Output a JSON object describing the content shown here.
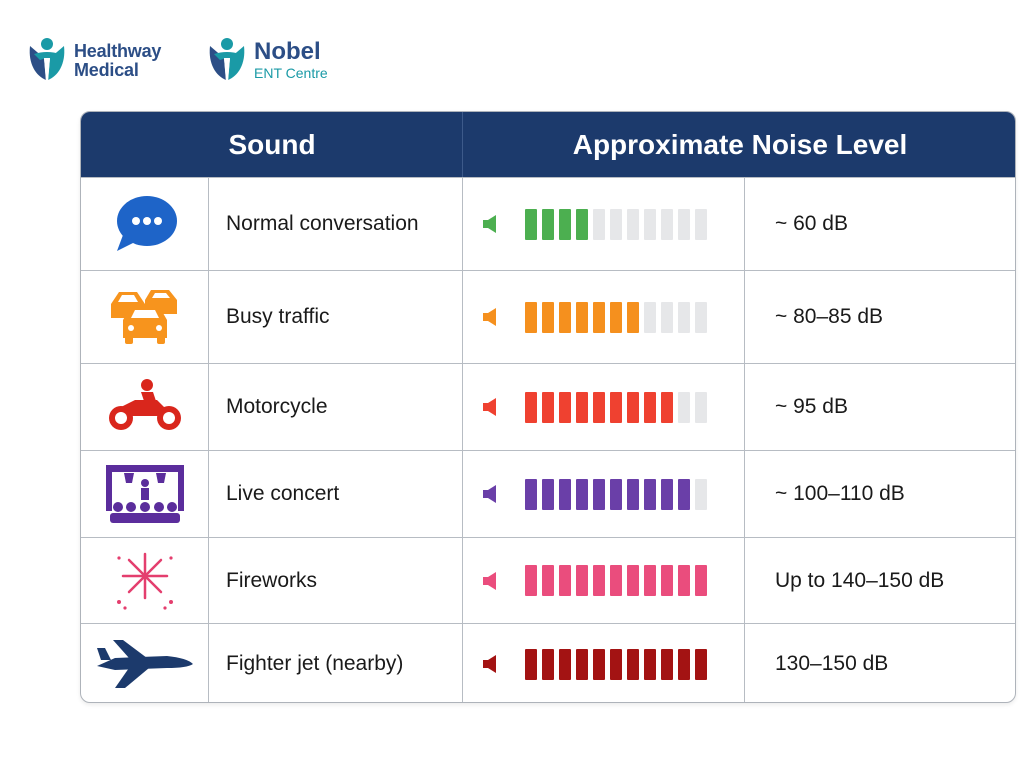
{
  "logos": [
    {
      "line1": "Healthway",
      "line2": "Medical",
      "color": "#2c4e86"
    },
    {
      "line1": "Nobel",
      "line2": "ENT Centre",
      "color": "#1a9aa6"
    }
  ],
  "table": {
    "headers": {
      "sound": "Sound",
      "level": "Approximate Noise Level"
    },
    "header_color": "#1c3a6c",
    "rows": [
      {
        "icon": "speech-bubble-icon",
        "name": "Normal conversation",
        "value": "~ 60 dB",
        "bars_on": 4,
        "bars_total": 11,
        "color": "#4caf50"
      },
      {
        "icon": "traffic-cars-icon",
        "name": "Busy traffic",
        "value": "~ 80–85 dB",
        "bars_on": 7,
        "bars_total": 11,
        "color": "#f5901e"
      },
      {
        "icon": "motorcycle-icon",
        "name": "Motorcycle",
        "value": "~ 95 dB",
        "bars_on": 9,
        "bars_total": 11,
        "color": "#ef4130"
      },
      {
        "icon": "concert-stage-icon",
        "name": "Live concert",
        "value": "~ 100–110 dB",
        "bars_on": 10,
        "bars_total": 11,
        "color": "#6a3fa8"
      },
      {
        "icon": "fireworks-icon",
        "name": "Fireworks",
        "value": "Up to 140–150 dB",
        "bars_on": 11,
        "bars_total": 11,
        "color": "#ea4d7d"
      },
      {
        "icon": "fighter-jet-icon",
        "name": "Fighter jet (nearby)",
        "value": "130–150 dB",
        "bars_on": 11,
        "bars_total": 11,
        "color": "#a31313"
      }
    ]
  }
}
